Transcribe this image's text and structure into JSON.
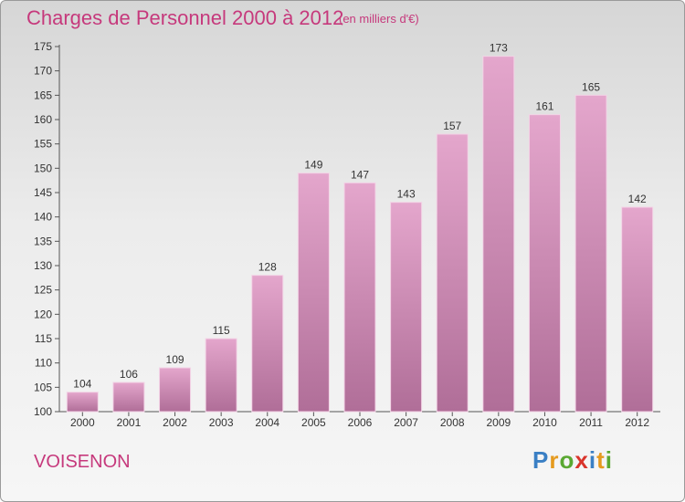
{
  "header": {
    "title": "Charges de Personnel 2000 à 2012",
    "unit": "(en milliers d'€)"
  },
  "footer": {
    "commune": "VOISENON",
    "logo": "Proxiti"
  },
  "colors": {
    "accent": "#c6397c",
    "bar_top": "#e4a6cc",
    "bar_bottom": "#b06e98"
  },
  "chart_data": {
    "type": "bar",
    "title": "Charges de Personnel 2000 à 2012",
    "subtitle": "(en milliers d'€)",
    "xlabel": "",
    "ylabel": "",
    "categories": [
      "2000",
      "2001",
      "2002",
      "2003",
      "2004",
      "2005",
      "2006",
      "2007",
      "2008",
      "2009",
      "2010",
      "2011",
      "2012"
    ],
    "values": [
      104,
      106,
      109,
      115,
      128,
      149,
      147,
      143,
      157,
      173,
      161,
      165,
      142
    ],
    "ylim": [
      100,
      175
    ],
    "yticks": [
      100,
      105,
      110,
      115,
      120,
      125,
      130,
      135,
      140,
      145,
      150,
      155,
      160,
      165,
      170,
      175
    ],
    "grid": false,
    "legend": "none"
  }
}
